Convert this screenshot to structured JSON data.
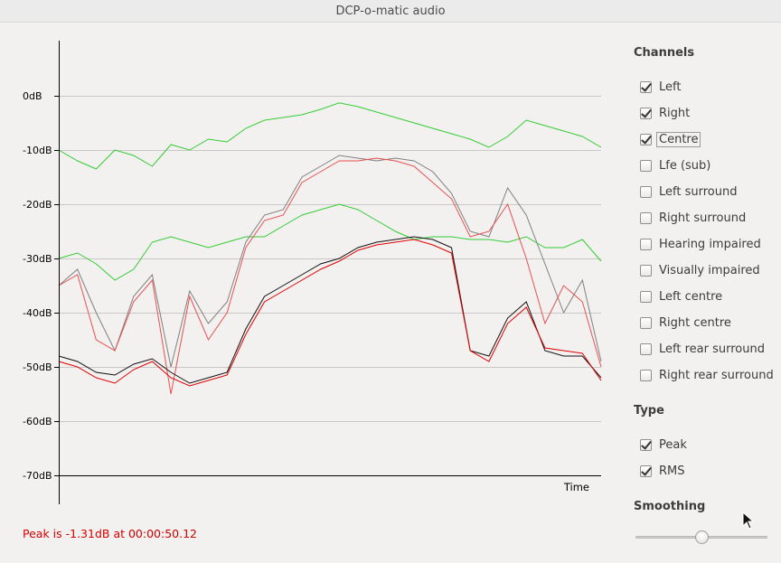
{
  "window": {
    "title": "DCP-o-matic audio"
  },
  "plot": {
    "y_ticks": [
      "0dB",
      "-10dB",
      "-20dB",
      "-30dB",
      "-40dB",
      "-50dB",
      "-60dB",
      "-70dB"
    ],
    "x_label": "Time",
    "peak_text": "Peak is -1.31dB at 00:00:50.12"
  },
  "chart_data": {
    "type": "line",
    "ylim": [
      -70,
      0
    ],
    "y_unit": "dB",
    "xlabel": "Time",
    "grid": true,
    "series": [
      {
        "color": "#33cc33",
        "values": [
          -10,
          -12,
          -13.5,
          -10,
          -11,
          -13,
          -9,
          -10,
          -8,
          -8.5,
          -6,
          -4.5,
          -4,
          -3.5,
          -2.5,
          -1.3,
          -2,
          -3,
          -4,
          -5,
          -6,
          -7,
          -8,
          -9.5,
          -7.5,
          -4.5,
          -5.5,
          -6.5,
          -7.5,
          -9.5
        ]
      },
      {
        "color": "#33cc33",
        "values": [
          -30,
          -29,
          -31,
          -34,
          -32,
          -27,
          -26,
          -27,
          -28,
          -27,
          -26,
          -26,
          -24,
          -22,
          -21,
          -20,
          -21,
          -23,
          -25,
          -26.5,
          -26,
          -26,
          -26.5,
          -26.5,
          -27,
          -26,
          -28,
          -28,
          -26.5,
          -30.5
        ]
      },
      {
        "color": "#808080",
        "values": [
          -35,
          -32,
          -40,
          -47,
          -37,
          -33,
          -50,
          -36,
          -42,
          -38,
          -27,
          -22,
          -21,
          -15,
          -13,
          -11,
          -11.5,
          -12,
          -11.5,
          -12,
          -14,
          -18,
          -25,
          -26,
          -17,
          -22,
          -31,
          -40,
          -34,
          -49
        ]
      },
      {
        "color": "#e85050",
        "values": [
          -35,
          -33,
          -45,
          -47,
          -38,
          -34,
          -55,
          -37,
          -45,
          -40,
          -28,
          -23,
          -22,
          -16,
          -14,
          -12,
          -12,
          -11.5,
          -12,
          -13,
          -16,
          -19,
          -26,
          -25,
          -20,
          -30,
          -42,
          -35,
          -38,
          -50
        ]
      },
      {
        "color": "#111111",
        "values": [
          -48,
          -49,
          -51,
          -51.5,
          -49.5,
          -48.5,
          -51,
          -53,
          -52,
          -51,
          -43,
          -37,
          -35,
          -33,
          -31,
          -30,
          -28,
          -27,
          -26.5,
          -26,
          -26.5,
          -28,
          -47,
          -48,
          -41,
          -38,
          -47,
          -48,
          -48,
          -52
        ]
      },
      {
        "color": "#e00000",
        "values": [
          -49,
          -50,
          -52,
          -53,
          -50.5,
          -49,
          -52,
          -53.5,
          -52.5,
          -51.5,
          -44,
          -38,
          -36,
          -34,
          -32,
          -30.5,
          -28.5,
          -27.5,
          -27,
          -26.5,
          -27.5,
          -29,
          -47,
          -49,
          -42,
          -39,
          -46.5,
          -47,
          -47.5,
          -52.5
        ]
      }
    ]
  },
  "sidebar": {
    "channels_title": "Channels",
    "channels": [
      {
        "label": "Left",
        "checked": true
      },
      {
        "label": "Right",
        "checked": true
      },
      {
        "label": "Centre",
        "checked": true
      },
      {
        "label": "Lfe (sub)",
        "checked": false
      },
      {
        "label": "Left surround",
        "checked": false
      },
      {
        "label": "Right surround",
        "checked": false
      },
      {
        "label": "Hearing impaired",
        "checked": false
      },
      {
        "label": "Visually impaired",
        "checked": false
      },
      {
        "label": "Left centre",
        "checked": false
      },
      {
        "label": "Right centre",
        "checked": false
      },
      {
        "label": "Left rear surround",
        "checked": false
      },
      {
        "label": "Right rear surround",
        "checked": false
      }
    ],
    "type_title": "Type",
    "types": [
      {
        "label": "Peak",
        "checked": true
      },
      {
        "label": "RMS",
        "checked": true
      }
    ],
    "smoothing_title": "Smoothing",
    "smoothing_value": 0.5
  }
}
